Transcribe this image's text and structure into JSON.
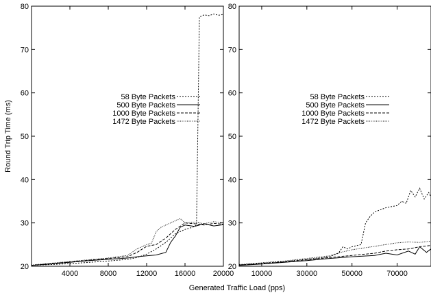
{
  "chart_data": [
    {
      "type": "line",
      "xlabel": "",
      "ylabel": "Round Trip Time (ms)",
      "xlim": [
        0,
        20000
      ],
      "ylim": [
        20,
        80
      ],
      "xticks": [
        4000,
        8000,
        12000,
        16000,
        20000
      ],
      "yticks": [
        20,
        30,
        40,
        50,
        60,
        70,
        80
      ],
      "legend": "center-left",
      "series": [
        {
          "name": "58 Byte Packets",
          "style": "dotted",
          "x": [
            0,
            2000,
            4000,
            6000,
            8000,
            10000,
            11000,
            12000,
            13000,
            14000,
            15000,
            16000,
            16800,
            17200,
            17500,
            18000,
            18500,
            19000,
            19500,
            20000
          ],
          "y": [
            20.2,
            20.4,
            20.6,
            20.9,
            21.2,
            21.6,
            22.0,
            22.8,
            24.0,
            25.5,
            27.5,
            28.5,
            29.0,
            29.5,
            77.5,
            78.0,
            77.8,
            78.2,
            77.9,
            78.1
          ]
        },
        {
          "name": "500 Byte Packets",
          "style": "solid",
          "x": [
            0,
            2000,
            4000,
            6000,
            8000,
            10000,
            11000,
            12000,
            13000,
            14000,
            14500,
            15000,
            15500,
            16000,
            17000,
            18000,
            19000,
            20000
          ],
          "y": [
            20.2,
            20.5,
            20.9,
            21.3,
            21.6,
            21.9,
            22.2,
            22.4,
            22.6,
            23.2,
            25.5,
            27.0,
            29.0,
            29.5,
            29.2,
            29.8,
            29.3,
            29.6
          ]
        },
        {
          "name": "1000 Byte Packets",
          "style": "dashed",
          "x": [
            0,
            2000,
            4000,
            6000,
            8000,
            10000,
            11000,
            12000,
            13000,
            14000,
            15000,
            16000,
            17000,
            18000,
            19000,
            20000
          ],
          "y": [
            20.2,
            20.6,
            21.0,
            21.4,
            21.8,
            22.2,
            23.2,
            24.6,
            25.0,
            26.5,
            28.5,
            30.0,
            29.8,
            29.5,
            29.9,
            29.7
          ]
        },
        {
          "name": "1472 Byte Packets",
          "style": "fine-dotted",
          "x": [
            0,
            2000,
            4000,
            6000,
            8000,
            10000,
            11000,
            12000,
            12500,
            13000,
            13500,
            14000,
            15000,
            15500,
            16000,
            17000,
            18000,
            19000,
            20000
          ],
          "y": [
            20.3,
            20.7,
            21.1,
            21.5,
            21.9,
            22.5,
            24.0,
            25.0,
            25.3,
            28.0,
            29.0,
            29.5,
            30.5,
            31.0,
            30.0,
            30.2,
            29.8,
            30.3,
            30.0
          ]
        }
      ]
    },
    {
      "type": "line",
      "xlabel": "",
      "ylabel": "",
      "xlim": [
        0,
        85000
      ],
      "ylim": [
        20,
        80
      ],
      "xticks": [
        10000,
        30000,
        50000,
        70000
      ],
      "yticks": [
        20,
        30,
        40,
        50,
        60,
        70,
        80
      ],
      "legend": "center-left",
      "series": [
        {
          "name": "58 Byte Packets",
          "style": "dotted",
          "x": [
            0,
            10000,
            20000,
            30000,
            40000,
            44000,
            46000,
            48000,
            50000,
            54000,
            56000,
            58000,
            60000,
            65000,
            70000,
            72000,
            74000,
            76000,
            78000,
            80000,
            82000,
            84000,
            85000
          ],
          "y": [
            20.3,
            20.7,
            21.1,
            21.6,
            22.2,
            23.0,
            24.5,
            24.0,
            24.5,
            25.0,
            30.0,
            31.5,
            32.5,
            33.5,
            34.0,
            35.0,
            34.5,
            37.5,
            36.0,
            38.0,
            35.5,
            37.0,
            36.0
          ]
        },
        {
          "name": "500 Byte Packets",
          "style": "solid",
          "x": [
            0,
            10000,
            20000,
            30000,
            40000,
            50000,
            60000,
            65000,
            70000,
            75000,
            78000,
            80000,
            83000,
            85000
          ],
          "y": [
            20.2,
            20.5,
            20.9,
            21.3,
            21.8,
            22.2,
            22.5,
            23.0,
            22.6,
            23.5,
            22.8,
            24.5,
            23.2,
            24.0
          ]
        },
        {
          "name": "1000 Byte Packets",
          "style": "dashed",
          "x": [
            0,
            10000,
            20000,
            30000,
            40000,
            50000,
            60000,
            65000,
            70000,
            75000,
            80000,
            85000
          ],
          "y": [
            20.3,
            20.6,
            21.0,
            21.5,
            22.0,
            22.5,
            23.0,
            23.5,
            23.8,
            24.0,
            24.5,
            24.8
          ]
        },
        {
          "name": "1472 Byte Packets",
          "style": "fine-dotted",
          "x": [
            0,
            10000,
            20000,
            30000,
            40000,
            45000,
            50000,
            55000,
            60000,
            65000,
            70000,
            75000,
            80000,
            85000
          ],
          "y": [
            20.4,
            20.8,
            21.2,
            21.8,
            22.4,
            23.2,
            23.8,
            24.2,
            24.6,
            25.0,
            25.4,
            25.6,
            25.5,
            25.8
          ]
        }
      ]
    }
  ],
  "figure": {
    "shared_xlabel": "Generated Traffic Load (pps)"
  }
}
